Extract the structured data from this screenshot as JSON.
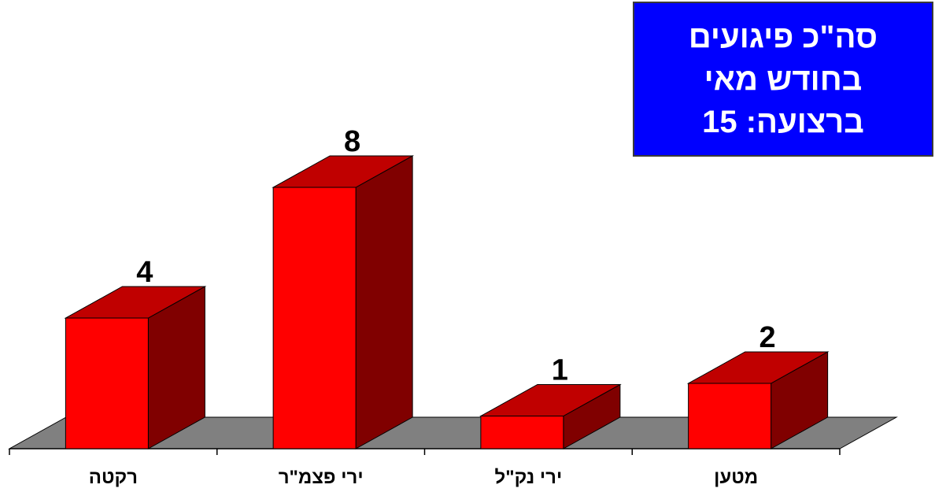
{
  "total_box": {
    "line1": "סה\"כ פיגועים",
    "line2": "בחודש מאי",
    "line3": "ברצועה: 15"
  },
  "chart_data": {
    "type": "bar",
    "categories": [
      "רקטה",
      "ירי פצמ\"ר",
      "ירי נק\"ל",
      "מטען"
    ],
    "values": [
      4,
      8,
      1,
      2
    ],
    "title": "",
    "xlabel": "",
    "ylabel": "",
    "ylim": [
      0,
      8
    ],
    "grid": false,
    "legend": "none",
    "three_d": true,
    "colors": {
      "bar_front": "#ff0000",
      "bar_top": "#c00000",
      "bar_side": "#800000",
      "floor": "#808080"
    }
  }
}
